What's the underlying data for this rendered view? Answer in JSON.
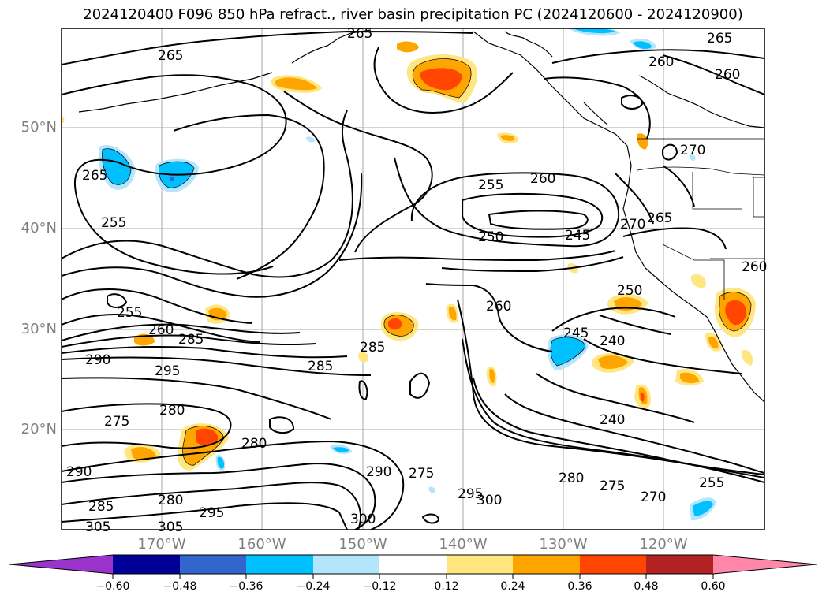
{
  "title": "2024120400 F096 850 hPa refract., river basin precipitation PC (2024120600 - 2024120900)",
  "map": {
    "lat_labels": [
      "50°N",
      "40°N",
      "30°N",
      "20°N"
    ],
    "lon_labels": [
      "170°W",
      "160°W",
      "150°W",
      "140°W",
      "130°W",
      "120°W"
    ],
    "contour_labels": [
      "265",
      "260",
      "265",
      "260",
      "270",
      "265",
      "265",
      "255",
      "260",
      "255",
      "250",
      "245",
      "270",
      "265",
      "250",
      "260",
      "255",
      "260",
      "285",
      "245",
      "240",
      "285",
      "290",
      "295",
      "280",
      "285",
      "275",
      "280",
      "290",
      "240",
      "275",
      "280",
      "290",
      "300",
      "295",
      "280",
      "275",
      "270",
      "255",
      "285",
      "305",
      "305",
      "295",
      "300",
      "260"
    ]
  },
  "colorbar": {
    "colors": [
      "#9933cc",
      "#000099",
      "#3366cc",
      "#00bfff",
      "#b3e5fc",
      "#ffffff",
      "#ffe680",
      "#ffa500",
      "#ff4500",
      "#b22222",
      "#ff88aa"
    ],
    "tick_labels": [
      "−0.60",
      "−0.48",
      "−0.36",
      "−0.24",
      "−0.12",
      "0.12",
      "0.24",
      "0.36",
      "0.48",
      "0.60"
    ]
  }
}
